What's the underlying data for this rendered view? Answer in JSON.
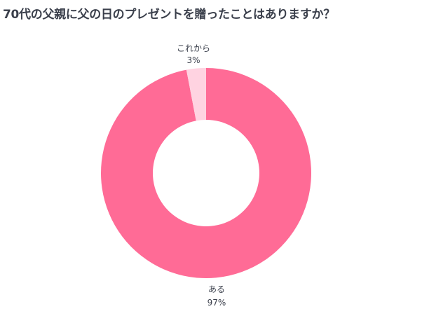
{
  "chart_data": {
    "type": "pie",
    "title": "70代の父親に父の日のプレゼントを贈ったことはありますか？",
    "categories": [
      "ある",
      "これから"
    ],
    "values": [
      97,
      3
    ],
    "value_labels": [
      "97%",
      "3%"
    ],
    "colors": [
      "#ff6b96",
      "#ffd3e1"
    ],
    "donut": true,
    "legend": "none"
  }
}
